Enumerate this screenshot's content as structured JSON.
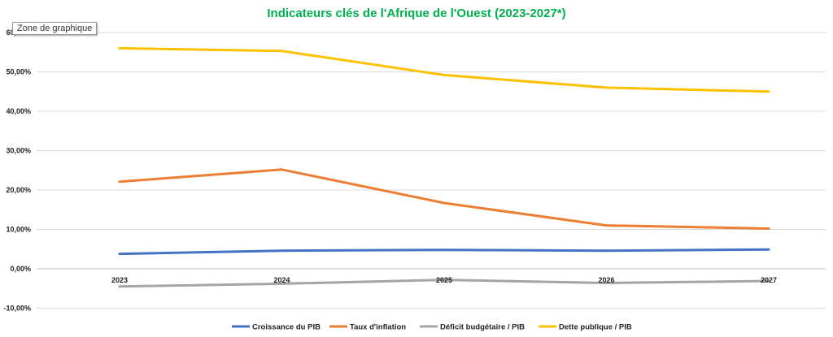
{
  "tooltip": "Zone de graphique",
  "colors": {
    "title": "#00b050",
    "grid": "#d9d9d9",
    "axis": "#bfbfbf"
  },
  "chart_data": {
    "type": "line",
    "title": "Indicateurs clés de l'Afrique de l'Ouest (2023-2027*)",
    "xlabel": "",
    "ylabel": "",
    "categories": [
      "2023",
      "2024",
      "2025",
      "2026",
      "2027"
    ],
    "ylim": [
      -0.1,
      0.6
    ],
    "yticks": [
      {
        "value": -0.1,
        "label": "-10,00%"
      },
      {
        "value": 0.0,
        "label": "0,00%"
      },
      {
        "value": 0.1,
        "label": "10,00%"
      },
      {
        "value": 0.2,
        "label": "20,00%"
      },
      {
        "value": 0.3,
        "label": "30,00%"
      },
      {
        "value": 0.4,
        "label": "40,00%"
      },
      {
        "value": 0.5,
        "label": "50,00%"
      },
      {
        "value": 0.6,
        "label": "60,00%"
      }
    ],
    "grid": true,
    "legend_position": "bottom",
    "series": [
      {
        "name": "Croissance du PIB",
        "color": "#4472c4",
        "values": [
          0.038,
          0.046,
          0.048,
          0.046,
          0.049
        ]
      },
      {
        "name": "Taux d'inflation",
        "color": "#ed7d31",
        "values": [
          0.221,
          0.252,
          0.167,
          0.11,
          0.102
        ]
      },
      {
        "name": "Déficit budgétaire / PIB",
        "color": "#a5a5a5",
        "values": [
          -0.045,
          -0.038,
          -0.028,
          -0.036,
          -0.031
        ]
      },
      {
        "name": "Dette publique / PIB",
        "color": "#ffc000",
        "values": [
          0.56,
          0.553,
          0.492,
          0.46,
          0.45
        ]
      }
    ]
  }
}
